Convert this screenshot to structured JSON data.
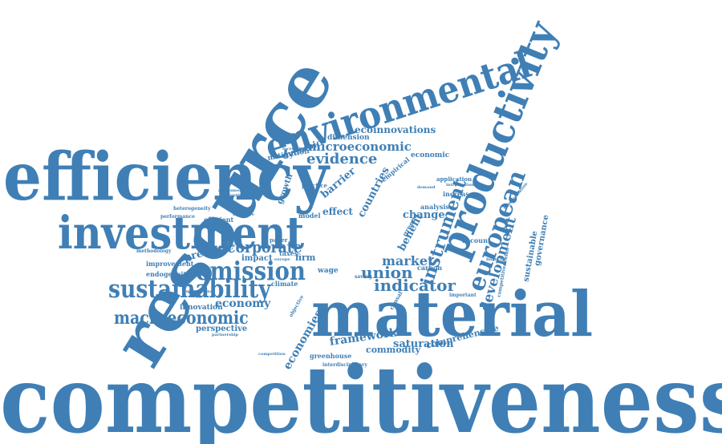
{
  "color": "#3f7fb5",
  "words": {
    "competitiveness": "competitiveness",
    "material": "material",
    "resource": "resource",
    "efficiency": "efficiency",
    "investment": "investment",
    "environmental": "environmental",
    "productivity": "productivity",
    "european": "european",
    "sustainability": "sustainability",
    "emission": "emission",
    "macroeconomic": "macroeconomic",
    "corporate": "corporate",
    "instrument": "instrument",
    "evidence": "evidence",
    "indicator": "indicator",
    "union": "union",
    "market": "market",
    "development": "development",
    "microeconomic": "microeconomic",
    "ecoinnovations": "ecoinnovations",
    "framework": "framework",
    "economies": "economies",
    "economy": "economy",
    "pressure": "pressure",
    "saturation": "saturation",
    "comprehensive": "comprehensive",
    "commodity": "commodity",
    "change": "change",
    "countries": "countries",
    "benefit": "benefit",
    "barrier": "barrier",
    "effect": "effect",
    "dynamic": "dynamic",
    "mitigation": "mitigation",
    "dimension": "dimension",
    "economic": "economic",
    "growth": "growth",
    "innovation": "innovation",
    "perspective": "perspective",
    "impact": "impact",
    "firm": "firm",
    "taxes": "taxes",
    "wage": "wage",
    "sustainable": "sustainable",
    "governance": "governance",
    "account": "account",
    "greenhouse": "greenhouse",
    "improvement": "improvement",
    "endogeneity": "endogeneity",
    "increase": "increase",
    "analysis": "analysis",
    "model": "model",
    "empirical": "empirical",
    "green": "green",
    "efficient": "efficient",
    "carbon": "carbon",
    "application": "application",
    "practice": "practice",
    "paper": "paper",
    "climate": "climate",
    "methodology": "methodology",
    "heterogeneity": "heterogeneity",
    "performance": "performance",
    "interdisciplinary": "interdisciplinary",
    "competitivenessan": "competitivenessan",
    "important": "important",
    "partnership": "partnership",
    "competition": "competition",
    "demand": "demand",
    "assessment": "assessment",
    "disruptive": "disruptive",
    "europe": "europe",
    "causal": "causal",
    "objective": "objective",
    "introduction": "introduction",
    "financial": "financial",
    "transformation": "transformation",
    "increasing": "increasing",
    "literature": "literature",
    "saving": "saving",
    "international": "international"
  }
}
